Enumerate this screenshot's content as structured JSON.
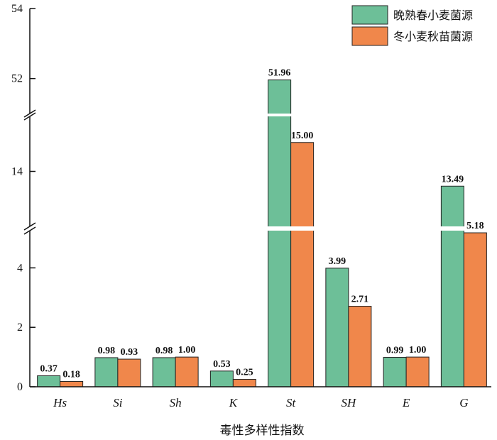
{
  "chart_data": {
    "type": "bar",
    "categories": [
      "Hs",
      "Si",
      "Sh",
      "K",
      "St",
      "SH",
      "E",
      "G"
    ],
    "series": [
      {
        "name": "晚熟春小麦菌源",
        "color": "#6dbf98",
        "values": [
          0.37,
          0.98,
          0.98,
          0.53,
          51.96,
          3.99,
          0.99,
          13.49
        ],
        "labels": [
          "0.37",
          "0.98",
          "0.98",
          "0.53",
          "51.96",
          "3.99",
          "0.99",
          "13.49"
        ]
      },
      {
        "name": "冬小麦秋苗菌源",
        "color": "#f0874b",
        "values": [
          0.18,
          0.93,
          1.0,
          0.25,
          15.0,
          2.71,
          1.0,
          5.18
        ],
        "labels": [
          "0.18",
          "0.93",
          "1.00",
          "0.25",
          "15.00",
          "2.71",
          "1.00",
          "5.18"
        ]
      }
    ],
    "xlabel": "毒性多样性指数",
    "ylabel": "",
    "y_axis_broken": true,
    "y_segments": [
      {
        "range": [
          0,
          5.3
        ],
        "ticks": [
          0,
          2,
          4
        ],
        "tick_labels": [
          "0",
          "2",
          "4"
        ]
      },
      {
        "range": [
          12,
          16
        ],
        "ticks": [
          14
        ],
        "tick_labels": [
          "14"
        ]
      },
      {
        "range": [
          51,
          54
        ],
        "ticks": [
          52,
          54
        ],
        "tick_labels": [
          "52",
          "54"
        ]
      }
    ],
    "grid": false,
    "legend_position": "top-right"
  }
}
